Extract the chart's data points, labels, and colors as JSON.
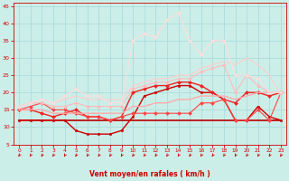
{
  "xlabel": "Vent moyen/en rafales ( km/h )",
  "xlim": [
    -0.5,
    23.5
  ],
  "ylim": [
    5,
    46
  ],
  "yticks": [
    5,
    10,
    15,
    20,
    25,
    30,
    35,
    40,
    45
  ],
  "xticks": [
    0,
    1,
    2,
    3,
    4,
    5,
    6,
    7,
    8,
    9,
    10,
    11,
    12,
    13,
    14,
    15,
    16,
    17,
    18,
    19,
    20,
    21,
    22,
    23
  ],
  "bg_color": "#cceee8",
  "grid_color": "#aadddd",
  "lines": [
    {
      "x": [
        0,
        1,
        2,
        3,
        4,
        5,
        6,
        7,
        8,
        9,
        10,
        11,
        12,
        13,
        14,
        15,
        16,
        17,
        18,
        19,
        20,
        21,
        22,
        23
      ],
      "y": [
        12,
        12,
        12,
        12,
        12,
        12,
        12,
        12,
        12,
        12,
        12,
        12,
        12,
        12,
        12,
        12,
        12,
        12,
        12,
        12,
        12,
        12,
        12,
        12
      ],
      "color": "#bb0000",
      "lw": 1.2,
      "marker": null,
      "ls": "-"
    },
    {
      "x": [
        0,
        1,
        2,
        3,
        4,
        5,
        6,
        7,
        8,
        9,
        10,
        11,
        12,
        13,
        14,
        15,
        16,
        17,
        18,
        19,
        20,
        21,
        22,
        23
      ],
      "y": [
        12,
        12,
        12,
        12,
        12,
        9,
        8,
        8,
        8,
        9,
        13,
        19,
        20,
        21,
        22,
        22,
        20,
        20,
        18,
        12,
        12,
        16,
        13,
        12
      ],
      "color": "#cc0000",
      "lw": 1.0,
      "marker": "s",
      "ms": 2.0,
      "ls": "-"
    },
    {
      "x": [
        0,
        1,
        2,
        3,
        4,
        5,
        6,
        7,
        8,
        9,
        10,
        11,
        12,
        13,
        14,
        15,
        16,
        17,
        18,
        19,
        20,
        21,
        22,
        23
      ],
      "y": [
        15,
        15,
        14,
        13,
        14,
        15,
        13,
        13,
        12,
        13,
        20,
        21,
        22,
        22,
        23,
        23,
        22,
        20,
        18,
        17,
        20,
        20,
        19,
        20
      ],
      "color": "#ee2222",
      "lw": 1.0,
      "marker": "D",
      "ms": 2.0,
      "ls": "-"
    },
    {
      "x": [
        0,
        1,
        2,
        3,
        4,
        5,
        6,
        7,
        8,
        9,
        10,
        11,
        12,
        13,
        14,
        15,
        16,
        17,
        18,
        19,
        20,
        21,
        22,
        23
      ],
      "y": [
        15,
        16,
        17,
        15,
        15,
        14,
        13,
        13,
        12,
        13,
        14,
        14,
        14,
        14,
        14,
        14,
        17,
        17,
        18,
        12,
        12,
        15,
        12,
        20
      ],
      "color": "#ff4444",
      "lw": 0.8,
      "marker": "D",
      "ms": 2.0,
      "ls": "-"
    },
    {
      "x": [
        0,
        1,
        2,
        3,
        4,
        5,
        6,
        7,
        8,
        9,
        10,
        11,
        12,
        13,
        14,
        15,
        16,
        17,
        18,
        19,
        20,
        21,
        22,
        23
      ],
      "y": [
        15,
        15,
        15,
        14,
        14,
        14,
        14,
        14,
        14,
        14,
        16,
        16,
        17,
        17,
        18,
        18,
        19,
        19,
        19,
        18,
        19,
        20,
        20,
        20
      ],
      "color": "#ffaaaa",
      "lw": 1.0,
      "marker": null,
      "ls": "-"
    },
    {
      "x": [
        0,
        1,
        2,
        3,
        4,
        5,
        6,
        7,
        8,
        9,
        10,
        11,
        12,
        13,
        14,
        15,
        16,
        17,
        18,
        19,
        20,
        21,
        22,
        23
      ],
      "y": [
        16,
        17,
        17,
        16,
        16,
        17,
        16,
        16,
        16,
        16,
        21,
        22,
        23,
        23,
        24,
        24,
        26,
        27,
        28,
        20,
        25,
        22,
        20,
        20
      ],
      "color": "#ffbbbb",
      "lw": 0.8,
      "marker": "D",
      "ms": 1.8,
      "ls": "-"
    },
    {
      "x": [
        0,
        1,
        2,
        3,
        4,
        5,
        6,
        7,
        8,
        9,
        10,
        11,
        12,
        13,
        14,
        15,
        16,
        17,
        18,
        19,
        20,
        21,
        22,
        23
      ],
      "y": [
        16,
        17,
        18,
        17,
        18,
        19,
        18,
        18,
        18,
        18,
        22,
        23,
        24,
        24,
        25,
        25,
        27,
        28,
        29,
        28,
        30,
        28,
        25,
        19
      ],
      "color": "#ffcccc",
      "lw": 0.8,
      "marker": null,
      "ls": "-"
    },
    {
      "x": [
        0,
        1,
        2,
        3,
        4,
        5,
        6,
        7,
        8,
        9,
        10,
        11,
        12,
        13,
        14,
        15,
        16,
        17,
        18,
        19,
        20,
        21,
        22,
        23
      ],
      "y": [
        16,
        17,
        18,
        17,
        19,
        21,
        19,
        19,
        17,
        17,
        35,
        37,
        36,
        41,
        43,
        35,
        31,
        35,
        35,
        25,
        25,
        24,
        20,
        20
      ],
      "color": "#ffdddd",
      "lw": 0.8,
      "marker": "D",
      "ms": 1.8,
      "ls": "-"
    }
  ]
}
